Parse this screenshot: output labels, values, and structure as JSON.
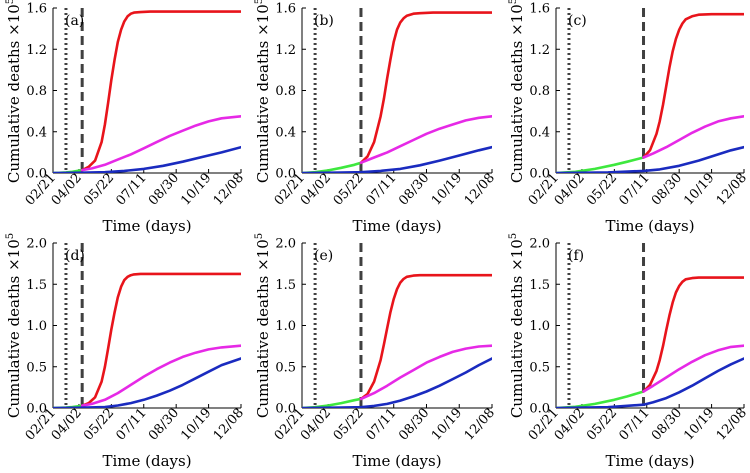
{
  "colors": {
    "red": "#e8141b",
    "magenta": "#e629e6",
    "blue": "#1a2bbf",
    "green": "#3ee83e",
    "vline": "#404040"
  },
  "chart_data": [
    {
      "type": "line",
      "panel": "(a)",
      "xlabel": "Time (days)",
      "ylabel": "Cumulative deaths ×10",
      "ylabel_exponent": "5",
      "x_range": [
        0,
        290
      ],
      "x_ticks": [
        0,
        40,
        90,
        140,
        190,
        240,
        290
      ],
      "x_tick_labels": [
        "02/21",
        "04/02",
        "05/22",
        "07/11",
        "08/30",
        "10/19",
        "12/08"
      ],
      "y_range": [
        0,
        1.6
      ],
      "y_ticks": [
        0,
        0.4,
        0.8,
        1.2,
        1.6
      ],
      "y_tick_labels": [
        "0.0",
        "0.4",
        "0.8",
        "1.2",
        "1.6"
      ],
      "markers": [
        {
          "style": "dotted",
          "x": 20
        },
        {
          "style": "dashed",
          "x": 45
        }
      ],
      "series": [
        {
          "color": "green",
          "x": [
            0,
            10,
            20,
            30,
            40,
            45
          ],
          "values": [
            0,
            0.002,
            0.006,
            0.012,
            0.022,
            0.028
          ]
        },
        {
          "color": "red",
          "x": [
            45,
            55,
            65,
            75,
            80,
            85,
            90,
            95,
            100,
            105,
            110,
            115,
            120,
            125,
            135,
            150,
            170,
            200,
            240,
            290
          ],
          "values": [
            0.028,
            0.06,
            0.12,
            0.3,
            0.47,
            0.68,
            0.9,
            1.1,
            1.27,
            1.39,
            1.47,
            1.52,
            1.545,
            1.555,
            1.56,
            1.565,
            1.565,
            1.565,
            1.565,
            1.565
          ]
        },
        {
          "color": "magenta",
          "x": [
            45,
            60,
            80,
            100,
            120,
            140,
            160,
            180,
            200,
            220,
            240,
            260,
            290
          ],
          "values": [
            0.028,
            0.045,
            0.08,
            0.13,
            0.18,
            0.24,
            0.3,
            0.36,
            0.41,
            0.46,
            0.5,
            0.53,
            0.55
          ]
        },
        {
          "color": "blue",
          "x": [
            0,
            45,
            80,
            110,
            140,
            170,
            200,
            230,
            260,
            290
          ],
          "values": [
            0,
            0.003,
            0.008,
            0.02,
            0.04,
            0.07,
            0.11,
            0.155,
            0.2,
            0.25
          ]
        }
      ]
    },
    {
      "type": "line",
      "panel": "(b)",
      "xlabel": "Time (days)",
      "ylabel": "Cumulative deaths ×10",
      "ylabel_exponent": "5",
      "x_range": [
        0,
        290
      ],
      "x_ticks": [
        0,
        40,
        90,
        140,
        190,
        240,
        290
      ],
      "x_tick_labels": [
        "02/21",
        "04/02",
        "05/22",
        "07/11",
        "08/30",
        "10/19",
        "12/08"
      ],
      "y_range": [
        0,
        1.6
      ],
      "y_ticks": [
        0,
        0.4,
        0.8,
        1.2,
        1.6
      ],
      "y_tick_labels": [
        "0.0",
        "0.4",
        "0.8",
        "1.2",
        "1.6"
      ],
      "markers": [
        {
          "style": "dotted",
          "x": 20
        },
        {
          "style": "dashed",
          "x": 90
        }
      ],
      "series": [
        {
          "color": "green",
          "x": [
            0,
            20,
            40,
            60,
            80,
            90
          ],
          "values": [
            0,
            0.008,
            0.025,
            0.05,
            0.08,
            0.1
          ]
        },
        {
          "color": "red",
          "x": [
            90,
            100,
            110,
            120,
            125,
            130,
            135,
            140,
            145,
            150,
            155,
            160,
            170,
            180,
            200,
            240,
            290
          ],
          "values": [
            0.1,
            0.16,
            0.3,
            0.55,
            0.72,
            0.92,
            1.1,
            1.27,
            1.39,
            1.46,
            1.5,
            1.525,
            1.545,
            1.55,
            1.555,
            1.555,
            1.555
          ]
        },
        {
          "color": "magenta",
          "x": [
            90,
            110,
            130,
            150,
            170,
            190,
            210,
            230,
            250,
            270,
            290
          ],
          "values": [
            0.1,
            0.15,
            0.2,
            0.26,
            0.32,
            0.38,
            0.43,
            0.47,
            0.51,
            0.535,
            0.55
          ]
        },
        {
          "color": "blue",
          "x": [
            0,
            60,
            90,
            120,
            150,
            180,
            210,
            240,
            270,
            290
          ],
          "values": [
            0,
            0.004,
            0.008,
            0.02,
            0.04,
            0.075,
            0.12,
            0.17,
            0.22,
            0.25
          ]
        }
      ]
    },
    {
      "type": "line",
      "panel": "(c)",
      "xlabel": "Time (days)",
      "ylabel": "Cumulative deaths ×10",
      "ylabel_exponent": "5",
      "x_range": [
        0,
        290
      ],
      "x_ticks": [
        0,
        40,
        90,
        140,
        190,
        240,
        290
      ],
      "x_tick_labels": [
        "02/21",
        "04/02",
        "05/22",
        "07/11",
        "08/30",
        "10/19",
        "12/08"
      ],
      "y_range": [
        0,
        1.6
      ],
      "y_ticks": [
        0,
        0.4,
        0.8,
        1.2,
        1.6
      ],
      "y_tick_labels": [
        "0.0",
        "0.4",
        "0.8",
        "1.2",
        "1.6"
      ],
      "markers": [
        {
          "style": "dotted",
          "x": 20
        },
        {
          "style": "dashed",
          "x": 135
        }
      ],
      "series": [
        {
          "color": "green",
          "x": [
            0,
            30,
            60,
            90,
            110,
            135
          ],
          "values": [
            0,
            0.012,
            0.04,
            0.08,
            0.11,
            0.15
          ]
        },
        {
          "color": "red",
          "x": [
            135,
            145,
            155,
            160,
            165,
            170,
            175,
            180,
            185,
            190,
            195,
            200,
            210,
            220,
            240,
            270,
            290
          ],
          "values": [
            0.15,
            0.22,
            0.38,
            0.5,
            0.66,
            0.84,
            1.02,
            1.18,
            1.3,
            1.39,
            1.45,
            1.49,
            1.52,
            1.535,
            1.54,
            1.54,
            1.54
          ]
        },
        {
          "color": "magenta",
          "x": [
            135,
            150,
            170,
            190,
            210,
            230,
            250,
            270,
            290
          ],
          "values": [
            0.15,
            0.19,
            0.25,
            0.32,
            0.39,
            0.45,
            0.5,
            0.53,
            0.55
          ]
        },
        {
          "color": "blue",
          "x": [
            0,
            80,
            135,
            160,
            190,
            220,
            250,
            270,
            290
          ],
          "values": [
            0,
            0.006,
            0.02,
            0.035,
            0.07,
            0.12,
            0.18,
            0.22,
            0.25
          ]
        }
      ]
    },
    {
      "type": "line",
      "panel": "(d)",
      "xlabel": "Time (days)",
      "ylabel": "Cumulative deaths ×10",
      "ylabel_exponent": "5",
      "x_range": [
        0,
        290
      ],
      "x_ticks": [
        0,
        40,
        90,
        140,
        190,
        240,
        290
      ],
      "x_tick_labels": [
        "02/21",
        "04/02",
        "05/22",
        "07/11",
        "08/30",
        "10/19",
        "12/08"
      ],
      "y_range": [
        0,
        2.0
      ],
      "y_ticks": [
        0,
        0.5,
        1.0,
        1.5,
        2.0
      ],
      "y_tick_labels": [
        "0.0",
        "0.5",
        "1.0",
        "1.5",
        "2.0"
      ],
      "markers": [
        {
          "style": "dotted",
          "x": 20
        },
        {
          "style": "dashed",
          "x": 45
        }
      ],
      "series": [
        {
          "color": "green",
          "x": [
            0,
            10,
            20,
            30,
            40,
            45
          ],
          "values": [
            0,
            0.002,
            0.006,
            0.012,
            0.022,
            0.028
          ]
        },
        {
          "color": "red",
          "x": [
            45,
            55,
            65,
            75,
            80,
            85,
            90,
            95,
            100,
            105,
            110,
            115,
            120,
            125,
            135,
            150,
            170,
            200,
            240,
            290
          ],
          "values": [
            0.028,
            0.06,
            0.13,
            0.32,
            0.5,
            0.72,
            0.95,
            1.16,
            1.34,
            1.47,
            1.55,
            1.59,
            1.61,
            1.62,
            1.625,
            1.625,
            1.625,
            1.625,
            1.625,
            1.625
          ]
        },
        {
          "color": "magenta",
          "x": [
            45,
            60,
            80,
            100,
            120,
            140,
            160,
            180,
            200,
            220,
            240,
            260,
            290
          ],
          "values": [
            0.028,
            0.05,
            0.1,
            0.18,
            0.28,
            0.38,
            0.47,
            0.55,
            0.62,
            0.67,
            0.71,
            0.735,
            0.755
          ]
        },
        {
          "color": "blue",
          "x": [
            0,
            45,
            80,
            100,
            120,
            140,
            160,
            180,
            200,
            220,
            240,
            260,
            290
          ],
          "values": [
            0,
            0.004,
            0.012,
            0.03,
            0.06,
            0.1,
            0.15,
            0.21,
            0.28,
            0.36,
            0.44,
            0.52,
            0.6
          ]
        }
      ]
    },
    {
      "type": "line",
      "panel": "(e)",
      "xlabel": "Time (days)",
      "ylabel": "Cumulative deaths ×10",
      "ylabel_exponent": "5",
      "x_range": [
        0,
        290
      ],
      "x_ticks": [
        0,
        40,
        90,
        140,
        190,
        240,
        290
      ],
      "x_tick_labels": [
        "02/21",
        "04/02",
        "05/22",
        "07/11",
        "08/30",
        "10/19",
        "12/08"
      ],
      "y_range": [
        0,
        2.0
      ],
      "y_ticks": [
        0,
        0.5,
        1.0,
        1.5,
        2.0
      ],
      "y_tick_labels": [
        "0.0",
        "0.5",
        "1.0",
        "1.5",
        "2.0"
      ],
      "markers": [
        {
          "style": "dotted",
          "x": 20
        },
        {
          "style": "dashed",
          "x": 90
        }
      ],
      "series": [
        {
          "color": "green",
          "x": [
            0,
            20,
            40,
            60,
            80,
            90
          ],
          "values": [
            0,
            0.01,
            0.03,
            0.06,
            0.095,
            0.11
          ]
        },
        {
          "color": "red",
          "x": [
            90,
            100,
            110,
            120,
            125,
            130,
            135,
            140,
            145,
            150,
            155,
            160,
            170,
            180,
            200,
            240,
            290
          ],
          "values": [
            0.11,
            0.17,
            0.32,
            0.58,
            0.77,
            0.97,
            1.16,
            1.32,
            1.44,
            1.52,
            1.565,
            1.59,
            1.605,
            1.61,
            1.61,
            1.61,
            1.61
          ]
        },
        {
          "color": "magenta",
          "x": [
            90,
            110,
            130,
            150,
            170,
            190,
            210,
            230,
            250,
            270,
            290
          ],
          "values": [
            0.11,
            0.18,
            0.27,
            0.37,
            0.46,
            0.55,
            0.62,
            0.68,
            0.72,
            0.745,
            0.755
          ]
        },
        {
          "color": "blue",
          "x": [
            0,
            60,
            90,
            110,
            130,
            150,
            170,
            190,
            210,
            230,
            250,
            270,
            290
          ],
          "values": [
            0,
            0.005,
            0.01,
            0.025,
            0.05,
            0.09,
            0.14,
            0.2,
            0.27,
            0.35,
            0.43,
            0.52,
            0.6
          ]
        }
      ]
    },
    {
      "type": "line",
      "panel": "(f)",
      "xlabel": "Time (days)",
      "ylabel": "Cumulative deaths ×10",
      "ylabel_exponent": "5",
      "x_range": [
        0,
        290
      ],
      "x_ticks": [
        0,
        40,
        90,
        140,
        190,
        240,
        290
      ],
      "x_tick_labels": [
        "02/21",
        "04/02",
        "05/22",
        "07/11",
        "08/30",
        "10/19",
        "12/08"
      ],
      "y_range": [
        0,
        2.0
      ],
      "y_ticks": [
        0,
        0.5,
        1.0,
        1.5,
        2.0
      ],
      "y_tick_labels": [
        "0.0",
        "0.5",
        "1.0",
        "1.5",
        "2.0"
      ],
      "markers": [
        {
          "style": "dotted",
          "x": 20
        },
        {
          "style": "dashed",
          "x": 135
        }
      ],
      "series": [
        {
          "color": "green",
          "x": [
            0,
            30,
            60,
            90,
            110,
            135
          ],
          "values": [
            0,
            0.015,
            0.05,
            0.1,
            0.14,
            0.2
          ]
        },
        {
          "color": "red",
          "x": [
            135,
            145,
            155,
            160,
            165,
            170,
            175,
            180,
            185,
            190,
            195,
            200,
            210,
            220,
            240,
            270,
            290
          ],
          "values": [
            0.2,
            0.28,
            0.45,
            0.58,
            0.75,
            0.94,
            1.12,
            1.28,
            1.4,
            1.48,
            1.53,
            1.56,
            1.575,
            1.58,
            1.58,
            1.58,
            1.58
          ]
        },
        {
          "color": "magenta",
          "x": [
            135,
            150,
            170,
            190,
            210,
            230,
            250,
            270,
            290
          ],
          "values": [
            0.2,
            0.27,
            0.37,
            0.47,
            0.56,
            0.64,
            0.7,
            0.74,
            0.755
          ]
        },
        {
          "color": "blue",
          "x": [
            0,
            80,
            135,
            150,
            170,
            190,
            210,
            230,
            250,
            270,
            290
          ],
          "values": [
            0,
            0.01,
            0.04,
            0.07,
            0.12,
            0.19,
            0.27,
            0.36,
            0.45,
            0.53,
            0.6
          ]
        }
      ]
    }
  ]
}
